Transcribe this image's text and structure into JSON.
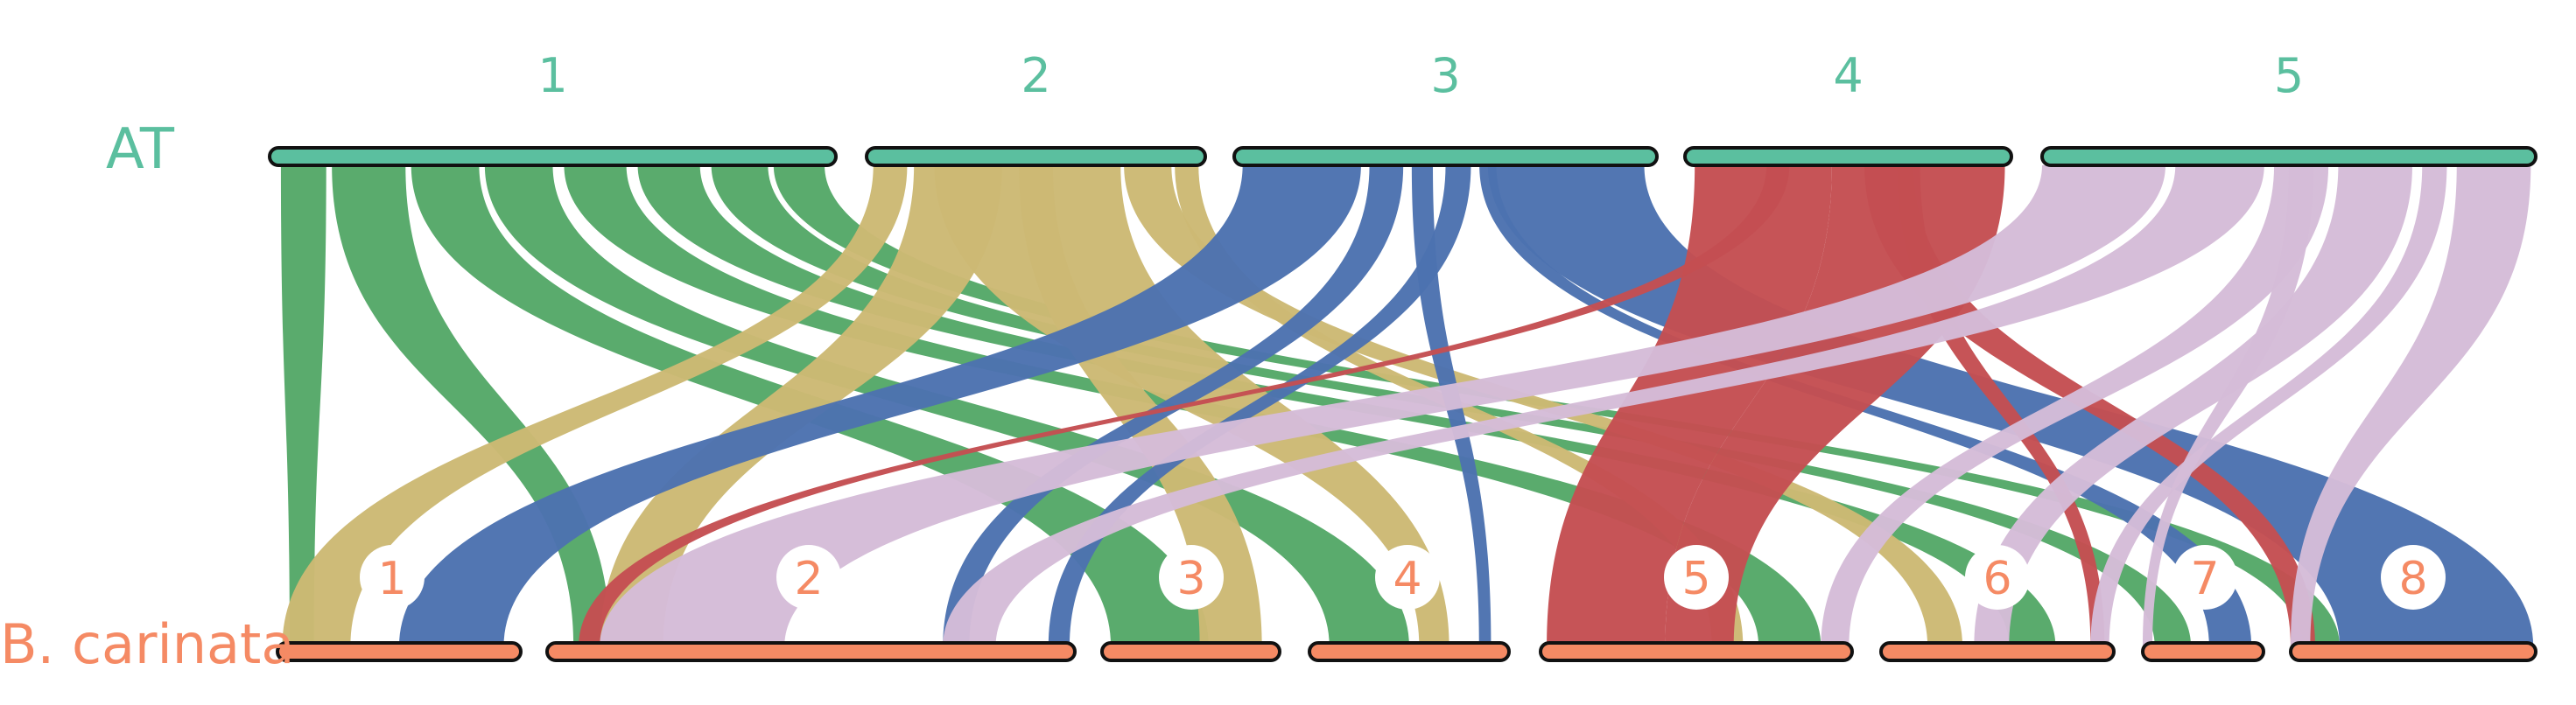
{
  "genomes": {
    "top": {
      "label": "AT",
      "color": "#5bbf9f"
    },
    "bottom": {
      "label": "B. carinata",
      "color": "#f58a64"
    }
  },
  "colors": {
    "1": "#55a868",
    "2": "#ccb974",
    "3": "#4c72b0",
    "4": "#c44e52",
    "5": "#d5bcd8",
    "outline": "#111111",
    "badge_fill": "#ffffff"
  },
  "top_chromosomes": [
    {
      "id": "1",
      "label": "1"
    },
    {
      "id": "2",
      "label": "2"
    },
    {
      "id": "3",
      "label": "3"
    },
    {
      "id": "4",
      "label": "4"
    },
    {
      "id": "5",
      "label": "5"
    }
  ],
  "bottom_chromosomes": [
    {
      "id": "1",
      "label": "1"
    },
    {
      "id": "2",
      "label": "2"
    },
    {
      "id": "3",
      "label": "3"
    },
    {
      "id": "4",
      "label": "4"
    },
    {
      "id": "5",
      "label": "5"
    },
    {
      "id": "6",
      "label": "6"
    },
    {
      "id": "7",
      "label": "7"
    },
    {
      "id": "8",
      "label": "8"
    }
  ],
  "links": [
    {
      "from": "1",
      "from_range": [
        0.02,
        0.1
      ],
      "to": "1",
      "to_range": [
        0.05,
        0.15
      ]
    },
    {
      "from": "1",
      "from_range": [
        0.11,
        0.24
      ],
      "to": "2",
      "to_range": [
        0.05,
        0.12
      ]
    },
    {
      "from": "1",
      "from_range": [
        0.25,
        0.37
      ],
      "to": "3",
      "to_range": [
        0.05,
        0.6
      ]
    },
    {
      "from": "1",
      "from_range": [
        0.38,
        0.5
      ],
      "to": "4",
      "to_range": [
        0.1,
        0.5
      ]
    },
    {
      "from": "1",
      "from_range": [
        0.52,
        0.63
      ],
      "to": "5",
      "to_range": [
        0.7,
        0.9
      ]
    },
    {
      "from": "1",
      "from_range": [
        0.65,
        0.76
      ],
      "to": "6",
      "to_range": [
        0.55,
        0.75
      ]
    },
    {
      "from": "1",
      "from_range": [
        0.78,
        0.88
      ],
      "to": "7",
      "to_range": [
        0.1,
        0.4
      ]
    },
    {
      "from": "1",
      "from_range": [
        0.89,
        0.98
      ],
      "to": "8",
      "to_range": [
        0.05,
        0.2
      ]
    },
    {
      "from": "2",
      "from_range": [
        0.02,
        0.12
      ],
      "to": "1",
      "to_range": [
        0.02,
        0.3
      ]
    },
    {
      "from": "2",
      "from_range": [
        0.2,
        0.75
      ],
      "to": "4",
      "to_range": [
        0.55,
        0.7
      ]
    },
    {
      "from": "2",
      "from_range": [
        0.14,
        0.4
      ],
      "to": "2",
      "to_range": [
        0.1,
        0.22
      ]
    },
    {
      "from": "2",
      "from_range": [
        0.45,
        0.55
      ],
      "to": "3",
      "to_range": [
        0.55,
        0.9
      ]
    },
    {
      "from": "2",
      "from_range": [
        0.76,
        0.9
      ],
      "to": "6",
      "to_range": [
        0.2,
        0.35
      ]
    },
    {
      "from": "2",
      "from_range": [
        0.91,
        0.98
      ],
      "to": "5",
      "to_range": [
        0.55,
        0.65
      ]
    },
    {
      "from": "3",
      "from_range": [
        0.02,
        0.3
      ],
      "to": "1",
      "to_range": [
        0.5,
        0.93
      ]
    },
    {
      "from": "3",
      "from_range": [
        0.32,
        0.4
      ],
      "to": "2",
      "to_range": [
        0.75,
        0.8
      ]
    },
    {
      "from": "3",
      "from_range": [
        0.42,
        0.47
      ],
      "to": "4",
      "to_range": [
        0.85,
        0.91
      ]
    },
    {
      "from": "3",
      "from_range": [
        0.5,
        0.56
      ],
      "to": "2",
      "to_range": [
        0.95,
        0.99
      ]
    },
    {
      "from": "3",
      "from_range": [
        0.6,
        0.97
      ],
      "to": "8",
      "to_range": [
        0.2,
        0.99
      ]
    },
    {
      "from": "3",
      "from_range": [
        0.58,
        0.62
      ],
      "to": "7",
      "to_range": [
        0.55,
        0.9
      ]
    },
    {
      "from": "4",
      "from_range": [
        0.03,
        0.45
      ],
      "to": "5",
      "to_range": [
        0.02,
        0.4
      ]
    },
    {
      "from": "4",
      "from_range": [
        0.45,
        0.98
      ],
      "to": "5",
      "to_range": [
        0.4,
        0.62
      ]
    },
    {
      "from": "4",
      "from_range": [
        0.25,
        0.32
      ],
      "to": "2",
      "to_range": [
        0.06,
        0.1
      ]
    },
    {
      "from": "4",
      "from_range": [
        0.55,
        0.7
      ],
      "to": "8",
      "to_range": [
        0.0,
        0.1
      ]
    },
    {
      "from": "4",
      "from_range": [
        0.65,
        0.72
      ],
      "to": "6",
      "to_range": [
        0.9,
        0.96
      ]
    },
    {
      "from": "5",
      "from_range": [
        0.0,
        0.25
      ],
      "to": "2",
      "to_range": [
        0.1,
        0.45
      ]
    },
    {
      "from": "5",
      "from_range": [
        0.27,
        0.45
      ],
      "to": "2",
      "to_range": [
        0.75,
        0.85
      ]
    },
    {
      "from": "5",
      "from_range": [
        0.47,
        0.58
      ],
      "to": "5",
      "to_range": [
        0.9,
        0.99
      ]
    },
    {
      "from": "5",
      "from_range": [
        0.6,
        0.75
      ],
      "to": "6",
      "to_range": [
        0.4,
        0.55
      ]
    },
    {
      "from": "5",
      "from_range": [
        0.77,
        0.82
      ],
      "to": "6",
      "to_range": [
        0.9,
        0.98
      ]
    },
    {
      "from": "5",
      "from_range": [
        0.84,
        0.99
      ],
      "to": "8",
      "to_range": [
        0.0,
        0.08
      ]
    },
    {
      "from": "5",
      "from_range": [
        0.5,
        0.55
      ],
      "to": "7",
      "to_range": [
        0.0,
        0.08
      ]
    }
  ]
}
